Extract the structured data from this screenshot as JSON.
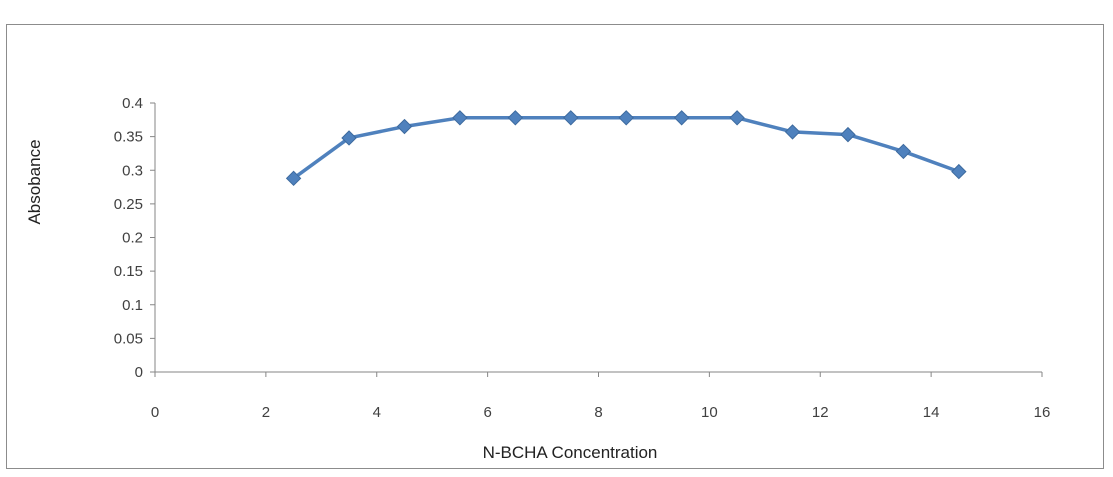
{
  "chart_data": {
    "type": "line",
    "title": "",
    "xlabel": "N-BCHA Concentration",
    "ylabel": "Absobance",
    "xlim": [
      0,
      16
    ],
    "ylim": [
      0,
      0.4
    ],
    "x_ticks": [
      "0",
      "2",
      "4",
      "6",
      "8",
      "10",
      "12",
      "14",
      "16"
    ],
    "y_ticks": [
      "0",
      "0.05",
      "0.1",
      "0.15",
      "0.2",
      "0.25",
      "0.3",
      "0.35",
      "0.4"
    ],
    "grid": false,
    "legend": "none",
    "series": [
      {
        "color": "#4f81bd",
        "marker": "diamond",
        "x": [
          2.5,
          3.5,
          4.5,
          5.5,
          6.5,
          7.5,
          8.5,
          9.5,
          10.5,
          11.5,
          12.5,
          13.5,
          14.5
        ],
        "y": [
          0.288,
          0.348,
          0.365,
          0.378,
          0.378,
          0.378,
          0.378,
          0.378,
          0.378,
          0.357,
          0.353,
          0.328,
          0.298
        ]
      }
    ]
  }
}
